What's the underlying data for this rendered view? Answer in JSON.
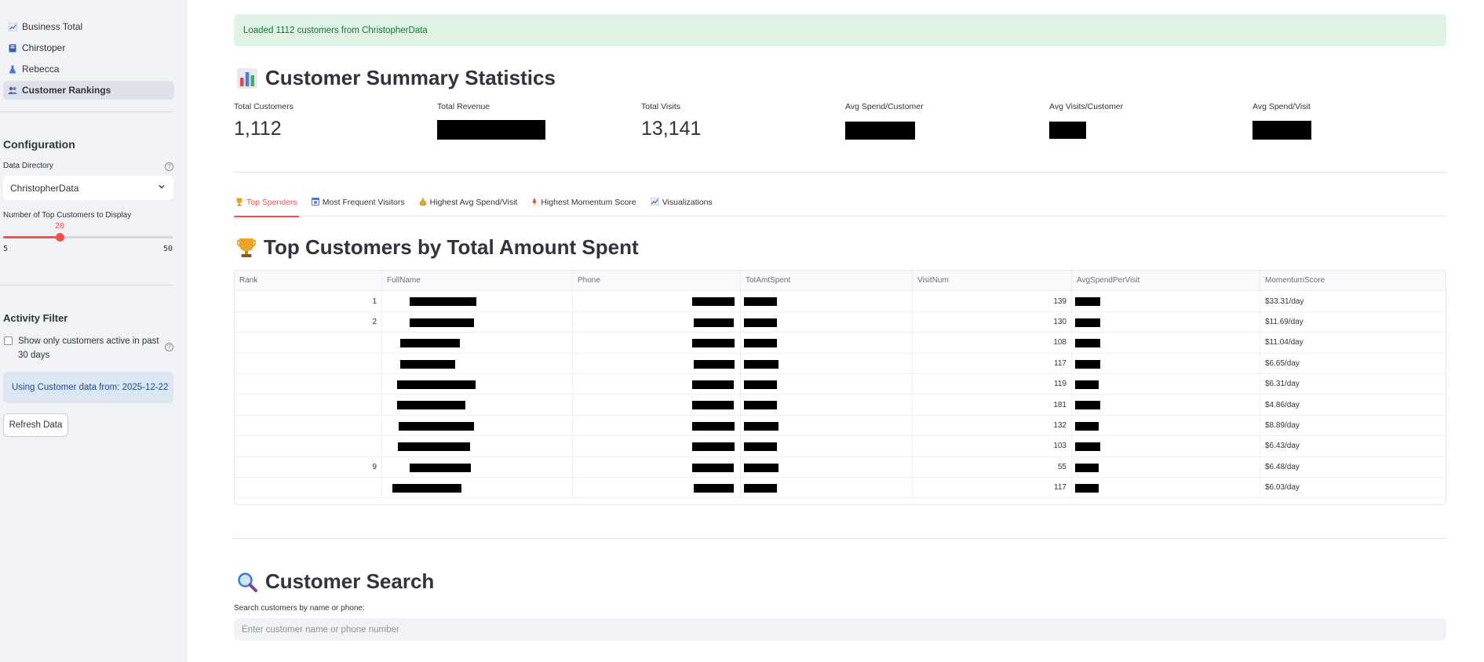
{
  "sidebar": {
    "nav": [
      {
        "label": "Business Total",
        "icon": "chart-icon"
      },
      {
        "label": "Chirstoper",
        "icon": "book-icon"
      },
      {
        "label": "Rebecca",
        "icon": "flask-icon"
      },
      {
        "label": "Customer Rankings",
        "icon": "users-icon",
        "active": true
      }
    ],
    "config_heading": "Configuration",
    "data_dir_label": "Data Directory",
    "data_dir_value": "ChristopherData",
    "slider_label": "Number of Top Customers to Display",
    "slider_value": "20",
    "slider_min": "5",
    "slider_max": "50",
    "activity_heading": "Activity Filter",
    "checkbox_label": "Show only customers active in past 30 days",
    "info_text": "Using Customer data from: 2025-12-22",
    "refresh_label": "Refresh Data"
  },
  "main": {
    "success_msg": "Loaded 1112 customers from ChristopherData",
    "summary_title": "Customer Summary Statistics",
    "metrics": [
      {
        "label": "Total Customers",
        "value": "1,112"
      },
      {
        "label": "Total Revenue",
        "value": ""
      },
      {
        "label": "Total Visits",
        "value": "13,141"
      },
      {
        "label": "Avg Spend/Customer",
        "value": ""
      },
      {
        "label": "Avg Visits/Customer",
        "value": ""
      },
      {
        "label": "Avg Spend/Visit",
        "value": ""
      }
    ],
    "tabs": [
      {
        "label": "Top Spenders",
        "icon": "trophy-icon",
        "active": true
      },
      {
        "label": "Most Frequent Visitors",
        "icon": "calendar-icon"
      },
      {
        "label": "Highest Avg Spend/Visit",
        "icon": "money-bag-icon"
      },
      {
        "label": "Highest Momentum Score",
        "icon": "rocket-icon"
      },
      {
        "label": "Visualizations",
        "icon": "chart-icon"
      }
    ],
    "top_title": "Top Customers by Total Amount Spent",
    "columns": [
      "Rank",
      "FullName",
      "Phone",
      "TotAmtSpent",
      "VisitNum",
      "AvgSpendPerVisit",
      "MomentumScore"
    ],
    "rows": [
      {
        "rank": "1",
        "visits": "139",
        "momentum": "$33.31/day"
      },
      {
        "rank": "2",
        "visits": "130",
        "momentum": "$11.69/day"
      },
      {
        "rank": "",
        "visits": "108",
        "momentum": "$11.04/day"
      },
      {
        "rank": "",
        "visits": "117",
        "momentum": "$6.65/day"
      },
      {
        "rank": "",
        "visits": "119",
        "momentum": "$6.31/day"
      },
      {
        "rank": "",
        "visits": "181",
        "momentum": "$4.86/day"
      },
      {
        "rank": "",
        "visits": "132",
        "momentum": "$8.89/day"
      },
      {
        "rank": "",
        "visits": "103",
        "momentum": "$6.43/day"
      },
      {
        "rank": "9",
        "visits": "55",
        "momentum": "$6.48/day"
      },
      {
        "rank": "",
        "visits": "117",
        "momentum": "$6.03/day"
      }
    ],
    "search_title": "Customer Search",
    "search_label": "Search customers by name or phone:",
    "search_placeholder": "Enter customer name or phone number"
  }
}
